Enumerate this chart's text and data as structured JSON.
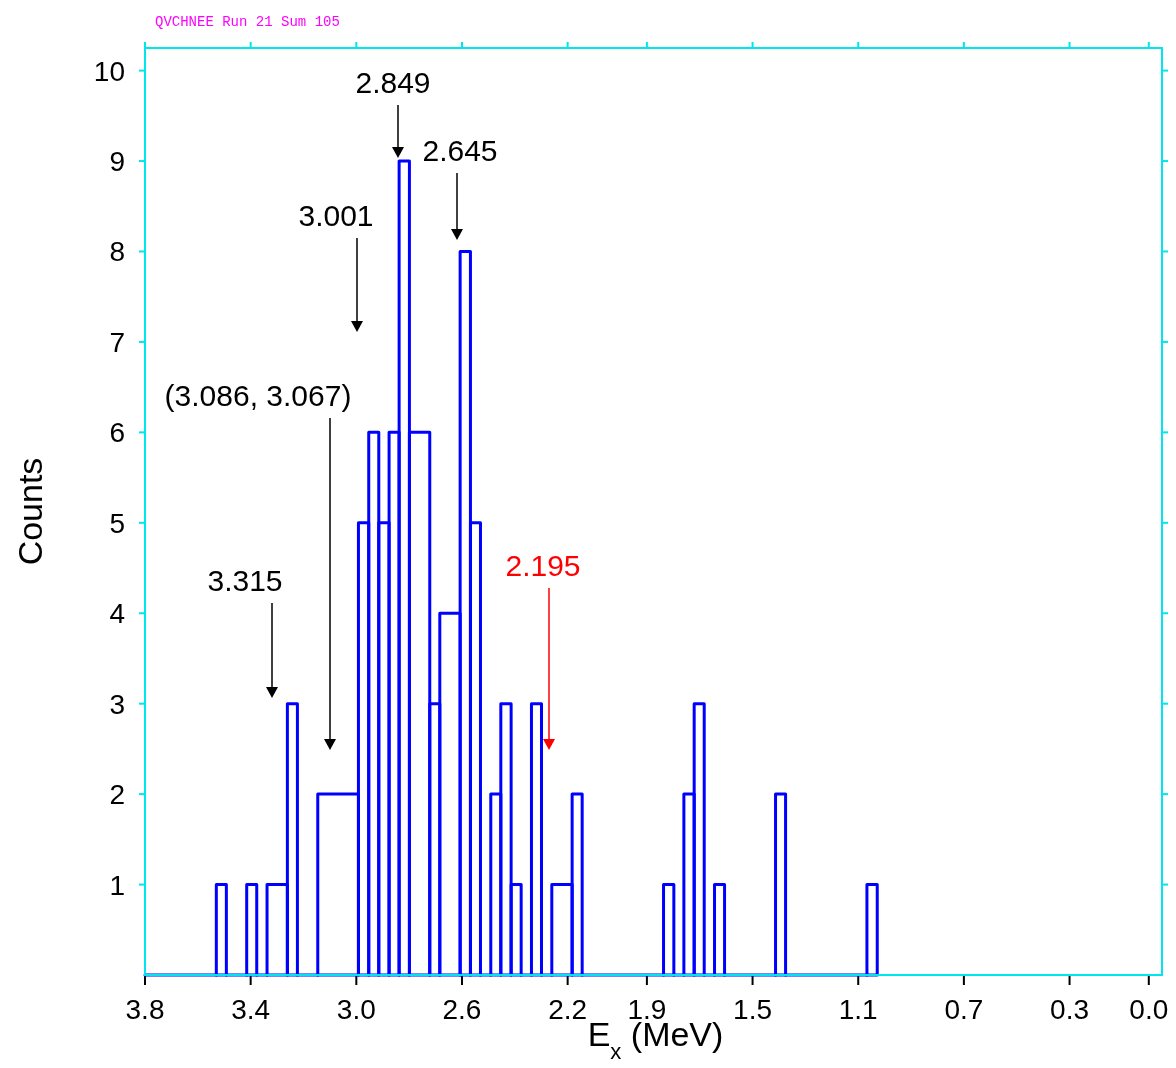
{
  "chart_data": {
    "type": "histogram",
    "title": "QVCHNEE  Run 21  Sum 105",
    "xlabel": "E$_{x}$ (MeV)",
    "ylabel": "Counts",
    "color": "#0000ff",
    "bins": [
      3.8,
      3.53,
      3.492,
      3.415,
      3.377,
      3.338,
      3.261,
      3.223,
      3.146,
      2.992,
      2.953,
      2.915,
      2.876,
      2.838,
      2.799,
      2.722,
      2.684,
      2.607,
      2.568,
      2.53,
      2.491,
      2.453,
      2.414,
      2.376,
      2.337,
      2.299,
      2.26,
      2.183,
      2.145,
      1.837,
      1.798,
      1.76,
      1.721,
      1.683,
      1.644,
      1.606,
      1.413,
      1.375,
      1.067,
      1.028
    ],
    "values": [
      0,
      1,
      0,
      1,
      0,
      1,
      3,
      0,
      2,
      5,
      6,
      5,
      6,
      9,
      6,
      3,
      4,
      8,
      5,
      0,
      2,
      3,
      1,
      0,
      3,
      0,
      1,
      2,
      0,
      1,
      0,
      2,
      3,
      0,
      1,
      0,
      2,
      0,
      1
    ],
    "xlim": [
      3.8,
      -0.05
    ],
    "xticks": [
      3.8,
      3.4,
      {
        "value": 3,
        "label": "3.0"
      },
      2.6,
      2.2,
      1.9,
      1.5,
      1.1,
      0.7,
      0.3,
      {
        "value": 0,
        "label": "0.0"
      }
    ],
    "ylim": [
      0,
      10.25
    ],
    "yticks": [
      1,
      2,
      3,
      4,
      5,
      6,
      7,
      8,
      9,
      10
    ],
    "annotations": [
      "2.849",
      "2.645",
      "3.001",
      "(3.086, 3.067)",
      "3.315",
      "2.195"
    ]
  }
}
